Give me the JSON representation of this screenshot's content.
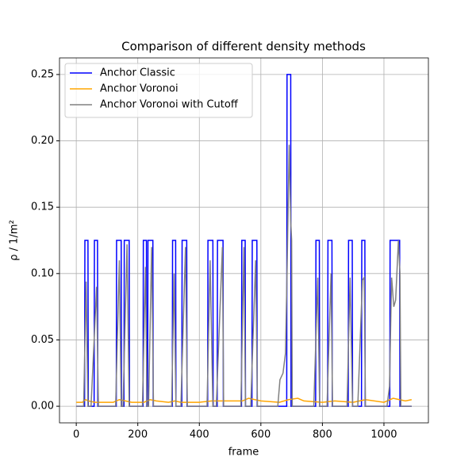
{
  "chart_data": {
    "type": "line",
    "title": "Comparison of different density methods",
    "xlabel": "frame",
    "ylabel": "ρ / 1/m²",
    "xlim": [
      -54.5,
      1144.5
    ],
    "ylim": [
      -0.0125,
      0.2625
    ],
    "xticks": [
      0,
      200,
      400,
      600,
      800,
      1000
    ],
    "yticks": [
      {
        "value": 0,
        "label": "0.00"
      },
      {
        "value": 0.05,
        "label": "0.05"
      },
      {
        "value": 0.1,
        "label": "0.10"
      },
      {
        "value": 0.15,
        "label": "0.15"
      },
      {
        "value": 0.2,
        "label": "0.20"
      },
      {
        "value": 0.25,
        "label": "0.25"
      }
    ],
    "grid": true,
    "legend": "upper-left",
    "series": [
      {
        "name": "Anchor Classic",
        "color": "#0000ff",
        "x": [
          0,
          27,
          28,
          38,
          39,
          58,
          59,
          69,
          70,
          130,
          131,
          146,
          147,
          155,
          156,
          172,
          173,
          217,
          218,
          228,
          229,
          232,
          233,
          249,
          250,
          312,
          313,
          323,
          324,
          343,
          344,
          359,
          360,
          427,
          428,
          444,
          445,
          458,
          459,
          477,
          478,
          537,
          538,
          549,
          550,
          571,
          572,
          587,
          588,
          684,
          685,
          697,
          698,
          778,
          779,
          790,
          791,
          817,
          818,
          831,
          832,
          884,
          885,
          897,
          898,
          927,
          928,
          938,
          939,
          1019,
          1020,
          1051,
          1052,
          1090
        ],
        "values": [
          0,
          0,
          0.125,
          0.125,
          0,
          0,
          0.125,
          0.125,
          0,
          0,
          0.125,
          0.125,
          0,
          0,
          0.125,
          0.125,
          0,
          0,
          0.125,
          0.125,
          0,
          0,
          0.125,
          0.125,
          0,
          0,
          0.125,
          0.125,
          0,
          0,
          0.125,
          0.125,
          0,
          0,
          0.125,
          0.125,
          0,
          0,
          0.125,
          0.125,
          0,
          0,
          0.125,
          0.125,
          0,
          0,
          0.125,
          0.125,
          0,
          0,
          0.25,
          0.25,
          0,
          0,
          0.125,
          0.125,
          0,
          0,
          0.125,
          0.125,
          0,
          0,
          0.125,
          0.125,
          0,
          0,
          0.125,
          0.125,
          0,
          0,
          0.125,
          0.125,
          0,
          0
        ]
      },
      {
        "name": "Anchor Voronoi",
        "color": "#ffa500",
        "x": [
          0,
          20,
          30,
          40,
          60,
          80,
          120,
          140,
          160,
          180,
          220,
          240,
          260,
          300,
          320,
          340,
          400,
          440,
          480,
          540,
          560,
          600,
          660,
          690,
          720,
          740,
          800,
          840,
          900,
          940,
          1000,
          1030,
          1050,
          1070,
          1090
        ],
        "values": [
          0.003,
          0.003,
          0.005,
          0.004,
          0.003,
          0.003,
          0.003,
          0.005,
          0.004,
          0.003,
          0.003,
          0.005,
          0.004,
          0.003,
          0.004,
          0.003,
          0.003,
          0.004,
          0.004,
          0.004,
          0.006,
          0.004,
          0.003,
          0.005,
          0.006,
          0.004,
          0.003,
          0.004,
          0.003,
          0.005,
          0.003,
          0.006,
          0.005,
          0.004,
          0.005
        ]
      },
      {
        "name": "Anchor Voronoi with Cutoff",
        "color": "#808080",
        "x": [
          0,
          24,
          32,
          38,
          48,
          55,
          66,
          72,
          128,
          140,
          146,
          152,
          165,
          172,
          215,
          225,
          230,
          235,
          245,
          251,
          310,
          318,
          324,
          340,
          355,
          361,
          425,
          435,
          444,
          455,
          475,
          479,
          535,
          545,
          550,
          567,
          583,
          589,
          655,
          662,
          672,
          680,
          685,
          692,
          697,
          700,
          702,
          772,
          785,
          791,
          815,
          828,
          833,
          880,
          890,
          898,
          915,
          930,
          936,
          940,
          1010,
          1018,
          1025,
          1032,
          1038,
          1047,
          1052,
          1055,
          1090
        ],
        "values": [
          0,
          0,
          0.094,
          0,
          0,
          0.035,
          0.09,
          0,
          0,
          0.11,
          0,
          0,
          0.122,
          0,
          0,
          0.105,
          0,
          0,
          0.12,
          0,
          0,
          0.1,
          0,
          0,
          0.12,
          0,
          0,
          0.11,
          0,
          0,
          0.12,
          0,
          0,
          0.12,
          0,
          0,
          0.11,
          0,
          0,
          0.02,
          0.025,
          0.04,
          0.1,
          0.197,
          0.14,
          0.125,
          0,
          0,
          0.097,
          0,
          0,
          0.1,
          0,
          0,
          0.097,
          0,
          0,
          0.095,
          0.097,
          0,
          0,
          0.015,
          0.097,
          0.075,
          0.08,
          0.125,
          0.1,
          0,
          0
        ]
      }
    ]
  }
}
